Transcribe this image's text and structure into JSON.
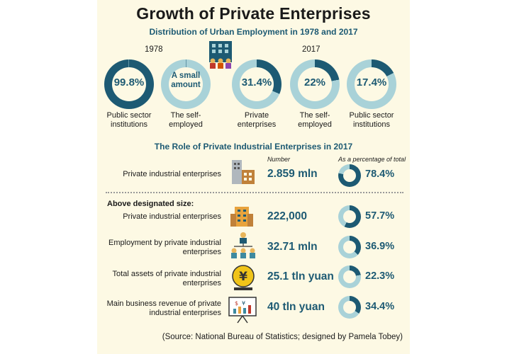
{
  "chart_data": [
    {
      "type": "donut",
      "title": "Growth of Private Enterprises",
      "subtitle": "Distribution of Urban Employment in 1978 and 2017",
      "groups": [
        {
          "year": "1978",
          "items": [
            {
              "label": "Public sector institutions",
              "value_text": "99.8%",
              "value": 99.8
            },
            {
              "label": "The self-employed",
              "value_text": "A small amount",
              "value": 0.2
            }
          ]
        },
        {
          "year": "2017",
          "items": [
            {
              "label": "Private enterprises",
              "value_text": "31.4%",
              "value": 31.4
            },
            {
              "label": "The self-employed",
              "value_text": "22%",
              "value": 22
            },
            {
              "label": "Public sector institutions",
              "value_text": "17.4%",
              "value": 17.4
            }
          ]
        }
      ]
    },
    {
      "type": "table",
      "title": "The Role of Private Industrial Enterprises in 2017",
      "columns": [
        "Number",
        "As a percentage of total"
      ],
      "rows": [
        {
          "label": "Private industrial enterprises",
          "number": "2.859 mln",
          "percent_text": "78.4%",
          "percent": 78.4,
          "icon": "factory-icon"
        }
      ],
      "subsection": "Above designated size:",
      "subrows": [
        {
          "label": "Private industrial enterprises",
          "number": "222,000",
          "percent_text": "57.7%",
          "percent": 57.7,
          "icon": "office-building-icon"
        },
        {
          "label": "Employment by private industrial enterprises",
          "number": "32.71 mln",
          "percent_text": "36.9%",
          "percent": 36.9,
          "icon": "org-chart-icon"
        },
        {
          "label": "Total assets of private industrial enterprises",
          "number": "25.1 tln yuan",
          "percent_text": "22.3%",
          "percent": 22.3,
          "icon": "yuan-coin-icon"
        },
        {
          "label": "Main business revenue of private industrial enterprises",
          "number": "40 tln yuan",
          "percent_text": "34.4%",
          "percent": 34.4,
          "icon": "presentation-board-icon"
        }
      ]
    }
  ],
  "source_note": "(Source: National Bureau of Statistics; designed by Pamela Tobey)",
  "colors": {
    "ring_fill": "#1d5a73",
    "ring_track": "#a9d2d8",
    "background": "#fdf9e4",
    "accent_text": "#1d5a73"
  }
}
